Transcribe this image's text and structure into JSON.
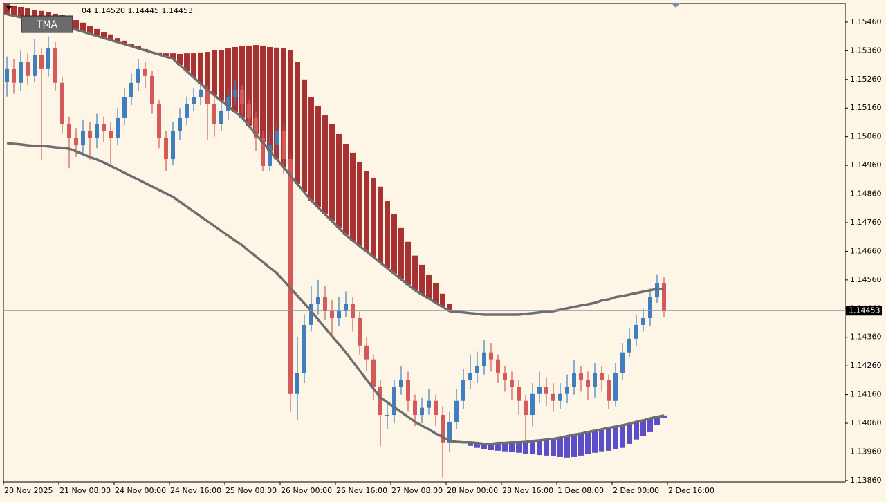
{
  "chart_data": {
    "type": "candlestick",
    "info_text": "04 1.14520 1.14445 1.14453",
    "indicator_label": "TMA",
    "up_color": "#3f7fbf",
    "down_color": "#d45a5a",
    "tma_color": "#6e6e6e",
    "upper_histogram_color": "#a83232",
    "lower_histogram_color": "#5a4fc8",
    "last_price": {
      "value": 1.14453,
      "label": "1.14453"
    },
    "xlim": [
      -0.5,
      121.2
    ],
    "xticks": [
      {
        "value": 0,
        "label": "20 Nov 2025"
      },
      {
        "value": 8,
        "label": "21 Nov 08:00"
      },
      {
        "value": 16,
        "label": "24 Nov 00:00"
      },
      {
        "value": 24,
        "label": "24 Nov 16:00"
      },
      {
        "value": 32,
        "label": "25 Nov 08:00"
      },
      {
        "value": 40,
        "label": "26 Nov 00:00"
      },
      {
        "value": 48,
        "label": "26 Nov 16:00"
      },
      {
        "value": 56,
        "label": "27 Nov 08:00"
      },
      {
        "value": 64,
        "label": "28 Nov 00:00"
      },
      {
        "value": 72,
        "label": "28 Nov 16:00"
      },
      {
        "value": 80,
        "label": "1 Dec 08:00"
      },
      {
        "value": 88,
        "label": "2 Dec 00:00"
      },
      {
        "value": 96,
        "label": "2 Dec 16:00"
      }
    ],
    "ylim": [
      1.13855,
      1.15525
    ],
    "yticks": [
      {
        "value": 1.1546,
        "label": "1.15460"
      },
      {
        "value": 1.1536,
        "label": "1.15360"
      },
      {
        "value": 1.1526,
        "label": "1.15260"
      },
      {
        "value": 1.1516,
        "label": "1.15160"
      },
      {
        "value": 1.1506,
        "label": "1.15060"
      },
      {
        "value": 1.1496,
        "label": "1.14960"
      },
      {
        "value": 1.1486,
        "label": "1.14860"
      },
      {
        "value": 1.1476,
        "label": "1.14760"
      },
      {
        "value": 1.1466,
        "label": "1.14660"
      },
      {
        "value": 1.1456,
        "label": "1.14560"
      },
      {
        "value": 1.1446,
        "label": "1.14460"
      },
      {
        "value": 1.1436,
        "label": "1.14360"
      },
      {
        "value": 1.1426,
        "label": "1.14260"
      },
      {
        "value": 1.1416,
        "label": "1.14160"
      },
      {
        "value": 1.1406,
        "label": "1.14060"
      },
      {
        "value": 1.1396,
        "label": "1.13960"
      },
      {
        "value": 1.1386,
        "label": "1.13860"
      }
    ],
    "open": [
      1.1525,
      1.15296,
      1.15248,
      1.1532,
      1.15272,
      1.15344,
      1.15296,
      1.15368,
      1.15248,
      1.15103,
      1.15055,
      1.1503,
      1.15079,
      1.15055,
      1.15103,
      1.15079,
      1.15055,
      1.15127,
      1.15199,
      1.15248,
      1.15296,
      1.15272,
      1.15175,
      1.15055,
      1.14982,
      1.15079,
      1.15127,
      1.15175,
      1.15199,
      1.15224,
      1.15175,
      1.15103,
      1.15151,
      1.15199,
      1.15224,
      1.15175,
      1.15127,
      1.15055,
      1.14958,
      1.1503,
      1.15079,
      1.14982,
      1.14162,
      1.14234,
      1.14403,
      1.14476,
      1.145,
      1.14451,
      1.14427,
      1.14451,
      1.14476,
      1.14427,
      1.14331,
      1.14283,
      1.14186,
      1.14089,
      1.14089,
      1.14186,
      1.1421,
      1.14138,
      1.14089,
      1.14114,
      1.14138,
      1.14089,
      1.13993,
      1.14065,
      1.14138,
      1.1421,
      1.14234,
      1.14258,
      1.14307,
      1.14283,
      1.14234,
      1.1421,
      1.14186,
      1.14138,
      1.14089,
      1.14162,
      1.14186,
      1.14162,
      1.14138,
      1.14162,
      1.14186,
      1.14234,
      1.1421,
      1.14186,
      1.14234,
      1.1421,
      1.14138,
      1.14234,
      1.14307,
      1.14355,
      1.14403,
      1.14427,
      1.145,
      1.14548
    ],
    "high": [
      1.1534,
      1.1533,
      1.1536,
      1.1535,
      1.154,
      1.1537,
      1.1541,
      1.1539,
      1.1527,
      1.1513,
      1.1509,
      1.1512,
      1.1511,
      1.1514,
      1.1513,
      1.1511,
      1.1516,
      1.1523,
      1.1528,
      1.1533,
      1.1532,
      1.1529,
      1.1519,
      1.1508,
      1.1511,
      1.1516,
      1.152,
      1.1523,
      1.1525,
      1.1524,
      1.152,
      1.1518,
      1.1523,
      1.1526,
      1.1524,
      1.1519,
      1.1515,
      1.1508,
      1.1507,
      1.1511,
      1.151,
      1.15,
      1.1436,
      1.1444,
      1.1454,
      1.1456,
      1.1454,
      1.1449,
      1.145,
      1.1452,
      1.145,
      1.1445,
      1.1436,
      1.143,
      1.1421,
      1.1413,
      1.1421,
      1.1426,
      1.1424,
      1.1416,
      1.1415,
      1.1418,
      1.1416,
      1.1412,
      1.141,
      1.1418,
      1.1425,
      1.143,
      1.1431,
      1.1435,
      1.1434,
      1.143,
      1.1426,
      1.1424,
      1.1421,
      1.1416,
      1.142,
      1.1424,
      1.1422,
      1.142,
      1.142,
      1.1423,
      1.1428,
      1.1426,
      1.1424,
      1.1427,
      1.1426,
      1.1423,
      1.1427,
      1.1434,
      1.1439,
      1.1444,
      1.1446,
      1.1453,
      1.1458,
      1.1457
    ],
    "low": [
      1.152,
      1.1521,
      1.1522,
      1.1524,
      1.1525,
      1.1498,
      1.1527,
      1.1522,
      1.1507,
      1.1495,
      1.1499,
      1.15,
      1.1498,
      1.1502,
      1.1504,
      1.1496,
      1.1503,
      1.151,
      1.1517,
      1.1522,
      1.1523,
      1.1514,
      1.1502,
      1.1494,
      1.1496,
      1.1505,
      1.151,
      1.1515,
      1.1517,
      1.1505,
      1.1506,
      1.1508,
      1.1512,
      1.1517,
      1.1514,
      1.1509,
      1.1501,
      1.1494,
      1.1494,
      1.15,
      1.1493,
      1.141,
      1.1407,
      1.142,
      1.1438,
      1.1444,
      1.1442,
      1.1437,
      1.144,
      1.1443,
      1.1438,
      1.143,
      1.1424,
      1.1414,
      1.1398,
      1.1404,
      1.1406,
      1.1416,
      1.141,
      1.1405,
      1.1406,
      1.1409,
      1.1405,
      1.1387,
      1.1396,
      1.1404,
      1.1411,
      1.1418,
      1.142,
      1.1423,
      1.1424,
      1.142,
      1.1417,
      1.1414,
      1.1409,
      1.14,
      1.1405,
      1.1413,
      1.1412,
      1.141,
      1.1411,
      1.1413,
      1.1416,
      1.1417,
      1.1414,
      1.1415,
      1.1417,
      1.1411,
      1.1412,
      1.1421,
      1.1429,
      1.1433,
      1.1438,
      1.144,
      1.1448,
      1.1443
    ],
    "close": [
      1.15296,
      1.15248,
      1.1532,
      1.15272,
      1.15344,
      1.15296,
      1.15368,
      1.15248,
      1.15103,
      1.15055,
      1.1503,
      1.15079,
      1.15055,
      1.15103,
      1.15079,
      1.15055,
      1.15127,
      1.15199,
      1.15248,
      1.15296,
      1.15272,
      1.15175,
      1.15055,
      1.14982,
      1.15079,
      1.15127,
      1.15175,
      1.15199,
      1.15224,
      1.15175,
      1.15103,
      1.15151,
      1.15199,
      1.15224,
      1.15175,
      1.15127,
      1.15055,
      1.14958,
      1.1503,
      1.15079,
      1.14982,
      1.14162,
      1.14234,
      1.14403,
      1.14476,
      1.145,
      1.14451,
      1.14427,
      1.14451,
      1.14476,
      1.14427,
      1.14331,
      1.14283,
      1.14186,
      1.14089,
      1.14089,
      1.14186,
      1.1421,
      1.14138,
      1.14089,
      1.14114,
      1.14138,
      1.14089,
      1.13993,
      1.14065,
      1.14138,
      1.1421,
      1.14234,
      1.14258,
      1.14307,
      1.14283,
      1.14234,
      1.1421,
      1.14186,
      1.14138,
      1.14089,
      1.14162,
      1.14186,
      1.14162,
      1.14138,
      1.14162,
      1.14186,
      1.14234,
      1.1421,
      1.14186,
      1.14234,
      1.1421,
      1.14138,
      1.14234,
      1.14307,
      1.14355,
      1.14403,
      1.14427,
      1.145,
      1.14548,
      1.14451
    ],
    "tma_upper": [
      1.15487,
      1.15482,
      1.15477,
      1.15472,
      1.15467,
      1.15462,
      1.15455,
      1.1545,
      1.15446,
      1.15441,
      1.15433,
      1.15426,
      1.15419,
      1.15412,
      1.15404,
      1.15397,
      1.1539,
      1.15383,
      1.15376,
      1.15368,
      1.15361,
      1.15354,
      1.15347,
      1.15339,
      1.15332,
      1.1531,
      1.15289,
      1.15267,
      1.15245,
      1.15224,
      1.15204,
      1.15185,
      1.15166,
      1.15146,
      1.15127,
      1.15098,
      1.15069,
      1.1504,
      1.15011,
      1.14982,
      1.14953,
      1.14924,
      1.14895,
      1.14866,
      1.14837,
      1.14813,
      1.14789,
      1.14765,
      1.14741,
      1.14717,
      1.14697,
      1.14678,
      1.14659,
      1.1464,
      1.1462,
      1.14601,
      1.14582,
      1.14562,
      1.14543,
      1.14524,
      1.14509,
      1.14495,
      1.1448,
      1.14466,
      1.14451,
      1.14449,
      1.14447,
      1.14444,
      1.14442,
      1.14439,
      1.14439,
      1.14439,
      1.14439,
      1.14439,
      1.14439,
      1.14442,
      1.14444,
      1.14447,
      1.14449,
      1.14451,
      1.14456,
      1.14461,
      1.14466,
      1.14471,
      1.14475,
      1.1448,
      1.14488,
      1.14492,
      1.145,
      1.14504,
      1.14509,
      1.14514,
      1.14519,
      1.14524,
      1.14529,
      1.14529
    ],
    "tma_lower": [
      1.15038,
      1.15035,
      1.15033,
      1.1503,
      1.15028,
      1.15028,
      1.15026,
      1.15023,
      1.15021,
      1.15018,
      1.15009,
      1.14999,
      1.14989,
      1.1498,
      1.1497,
      1.14958,
      1.14946,
      1.14934,
      1.14922,
      1.1491,
      1.14898,
      1.14886,
      1.14874,
      1.14862,
      1.1485,
      1.14833,
      1.14816,
      1.14799,
      1.14782,
      1.14765,
      1.14748,
      1.14731,
      1.14714,
      1.14697,
      1.14681,
      1.14661,
      1.14642,
      1.14623,
      1.14603,
      1.14584,
      1.14558,
      1.14531,
      1.14505,
      1.14478,
      1.14451,
      1.14422,
      1.14393,
      1.14364,
      1.14336,
      1.14307,
      1.14275,
      1.14244,
      1.14212,
      1.14181,
      1.1415,
      1.14133,
      1.14116,
      1.14099,
      1.14082,
      1.14065,
      1.14051,
      1.14039,
      1.14024,
      1.14012,
      1.13998,
      1.13995,
      1.13993,
      1.13993,
      1.13991,
      1.13988,
      1.13988,
      1.13991,
      1.13991,
      1.13993,
      1.13993,
      1.13995,
      1.13998,
      1.14,
      1.14003,
      1.14005,
      1.1401,
      1.14015,
      1.1402,
      1.14024,
      1.14029,
      1.14034,
      1.14039,
      1.14044,
      1.14048,
      1.14053,
      1.14058,
      1.14065,
      1.1407,
      1.14077,
      1.14082,
      1.14087
    ],
    "upper_histogram": [
      1.15523,
      1.15518,
      1.15513,
      1.15508,
      1.15503,
      1.15499,
      1.15494,
      1.15489,
      1.15484,
      1.15477,
      1.15467,
      1.15458,
      1.15446,
      1.15436,
      1.15426,
      1.15417,
      1.15404,
      1.15395,
      1.15385,
      1.15376,
      1.15366,
      1.15356,
      1.15354,
      1.15351,
      1.15351,
      1.15349,
      1.15351,
      1.15351,
      1.15354,
      1.15356,
      1.15361,
      1.15363,
      1.15368,
      1.15373,
      1.15376,
      1.15378,
      1.1538,
      1.15378,
      1.15373,
      1.15371,
      1.15368,
      1.15363,
      1.1532,
      1.1526,
      1.15199,
      1.15168,
      1.15134,
      1.15103,
      1.15069,
      1.15035,
      1.15004,
      1.1497,
      1.14941,
      1.14915,
      1.14886,
      1.14837,
      1.14789,
      1.14741,
      1.14693,
      1.14645,
      1.14613,
      1.14579,
      1.14548,
      1.14512,
      1.14476,
      null,
      null,
      null,
      null,
      null,
      null,
      null,
      null,
      null,
      null,
      null,
      null,
      null,
      null,
      null,
      null,
      null,
      null,
      null,
      null,
      null,
      null,
      null,
      null,
      null,
      null,
      null,
      null,
      null,
      null,
      null
    ],
    "lower_histogram": [
      null,
      null,
      null,
      null,
      null,
      null,
      null,
      null,
      null,
      null,
      null,
      null,
      null,
      null,
      null,
      null,
      null,
      null,
      null,
      null,
      null,
      null,
      null,
      null,
      null,
      null,
      null,
      null,
      null,
      null,
      null,
      null,
      null,
      null,
      null,
      null,
      null,
      null,
      null,
      null,
      null,
      null,
      null,
      null,
      null,
      null,
      null,
      null,
      null,
      null,
      null,
      null,
      null,
      null,
      null,
      null,
      null,
      null,
      null,
      null,
      null,
      null,
      null,
      null,
      null,
      null,
      null,
      1.13981,
      1.13974,
      1.13969,
      1.13966,
      1.13964,
      1.13962,
      1.13959,
      1.13957,
      1.13954,
      1.13952,
      1.13949,
      1.13947,
      1.13945,
      1.13942,
      1.1394,
      1.13942,
      1.13947,
      1.13952,
      1.13957,
      1.13962,
      1.13964,
      1.13969,
      1.13974,
      1.13988,
      1.14003,
      1.14015,
      1.14029,
      1.14053,
      1.14077
    ]
  }
}
